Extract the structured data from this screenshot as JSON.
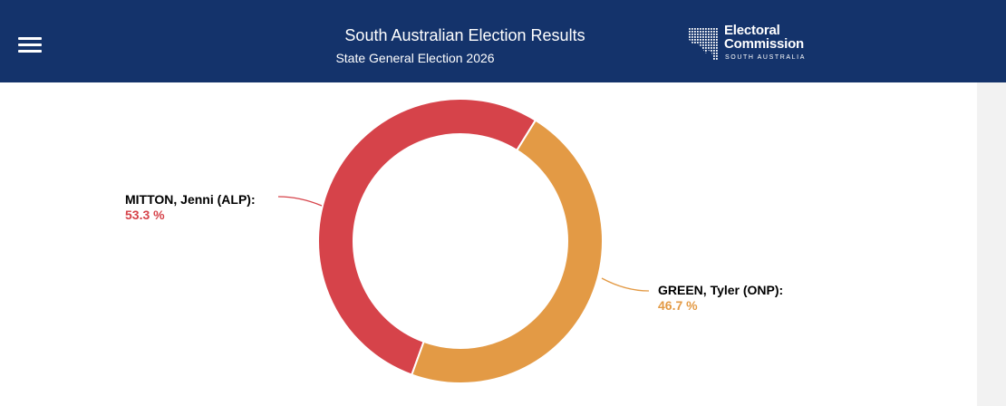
{
  "header": {
    "title": "South Australian Election Results",
    "subtitle": "State General Election 2026",
    "background": "#14336b",
    "menu_icon": "hamburger-menu-icon"
  },
  "logo": {
    "line1": "Electoral",
    "line2": "Commission",
    "line3": "SOUTH AUSTRALIA",
    "icon": "south-australia-map-icon"
  },
  "chart_data": {
    "type": "pie",
    "variant": "donut",
    "title": "",
    "series": [
      {
        "name": "MITTON, Jenni (ALP):",
        "value": 53.3,
        "label": "53.3 %",
        "color": "#d6434a"
      },
      {
        "name": "GREEN, Tyler (ONP):",
        "value": 46.7,
        "label": "46.7 %",
        "color": "#e39a45"
      }
    ]
  }
}
